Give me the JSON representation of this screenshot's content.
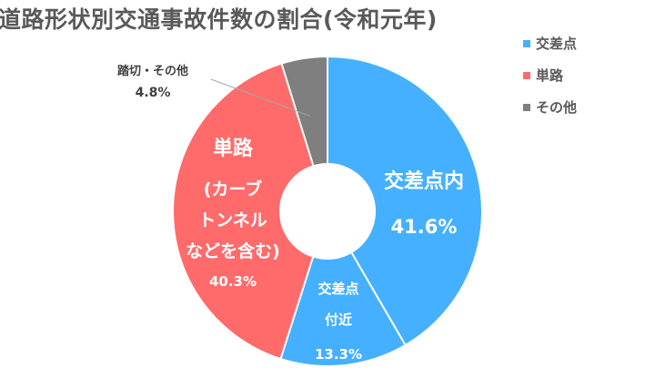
{
  "chart_data": {
    "type": "pie",
    "title": "道路形状別交通事故件数の割合(令和元年)",
    "categories": [
      "交差点内",
      "交差点付近",
      "単路(カーブトンネルなどを含む)",
      "踏切・その他"
    ],
    "values": [
      41.6,
      13.3,
      40.3,
      4.8
    ],
    "units": "%",
    "donut": true,
    "colors": [
      "#45b0ff",
      "#45b0ff",
      "#ff6b6b",
      "#7f7f7f"
    ],
    "slice_labels": [
      {
        "lines": [
          "交差点内"
        ],
        "value": "41.6%"
      },
      {
        "lines": [
          "交差点",
          "付近"
        ],
        "value": "13.3%"
      },
      {
        "lines": [
          "単路",
          "(カーブ",
          "トンネル",
          "などを含む)"
        ],
        "value": "40.3%"
      },
      {
        "lines": [
          "踏切・その他"
        ],
        "value": "4.8%"
      }
    ],
    "legend": {
      "placement": "right",
      "entries": [
        {
          "label": "交差点",
          "color": "#45b0ff"
        },
        {
          "label": "単路",
          "color": "#ff6b6b"
        },
        {
          "label": "その他",
          "color": "#7f7f7f"
        }
      ]
    }
  }
}
